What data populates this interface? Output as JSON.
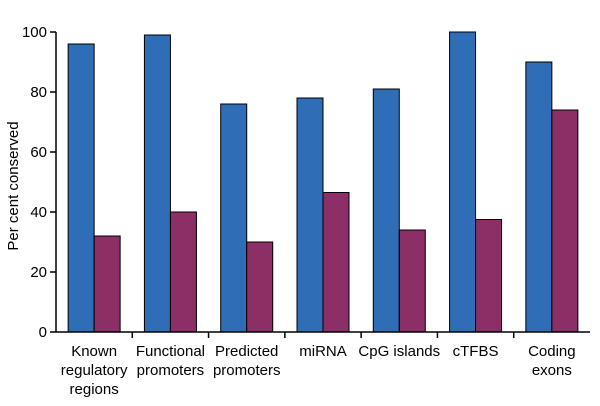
{
  "chart_data": {
    "type": "bar",
    "title": "",
    "xlabel": "",
    "ylabel": "Per cent conserved",
    "ylim": [
      0,
      100
    ],
    "yticks": [
      0,
      20,
      40,
      60,
      80,
      100
    ],
    "grid": false,
    "categories": [
      [
        "Known",
        "regulatory",
        "regions"
      ],
      [
        "Functional",
        "promoters"
      ],
      [
        "Predicted",
        "promoters"
      ],
      [
        "miRNA"
      ],
      [
        "CpG islands"
      ],
      [
        "cTFBS"
      ],
      [
        "Coding",
        "exons"
      ]
    ],
    "series": [
      {
        "values": [
          96,
          99,
          76,
          78,
          81,
          100,
          90
        ]
      },
      {
        "values": [
          32,
          40,
          30,
          46.5,
          34,
          37.5,
          74
        ]
      }
    ],
    "colors": {
      "series_1": "#2f6db6",
      "series_2": "#8b2f66",
      "axis": "#000000",
      "bar_stroke": "#000000"
    }
  }
}
